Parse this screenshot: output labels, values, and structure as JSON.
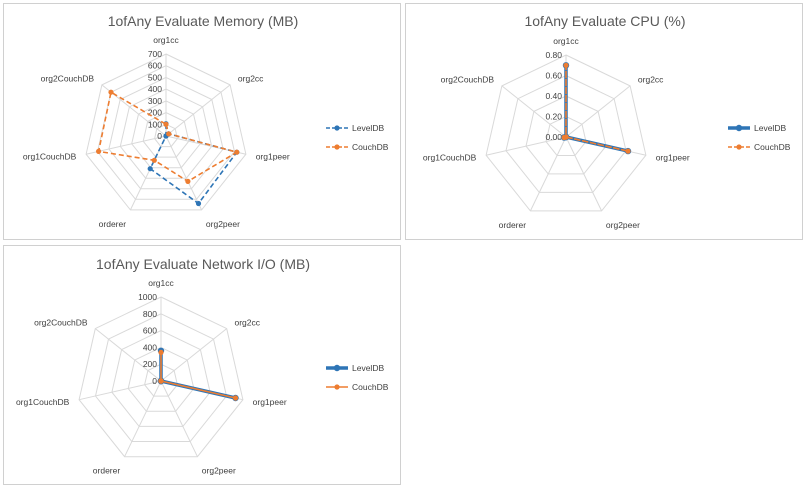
{
  "colors": {
    "leveldb": "#2e75b6",
    "couchdb": "#ed7d31",
    "grid": "#d9d9d9"
  },
  "chart_data": [
    {
      "type": "radar",
      "title": "1ofAny Evaluate Memory (MB)",
      "categories": [
        "org1cc",
        "org2cc",
        "org1peer",
        "org2peer",
        "orderer",
        "org1CouchDB",
        "org2CouchDB"
      ],
      "ylim": [
        0,
        700
      ],
      "ticks": [
        "0",
        "100",
        "200",
        "300",
        "400",
        "500",
        "600",
        "700"
      ],
      "grid": true,
      "legend_position": "right",
      "series": [
        {
          "name": "LevelDB",
          "values": [
            105,
            30,
            620,
            640,
            310,
            0,
            0
          ],
          "style": "dashed"
        },
        {
          "name": "CouchDB",
          "values": [
            100,
            30,
            620,
            430,
            230,
            590,
            600
          ],
          "style": "dashed"
        }
      ]
    },
    {
      "type": "radar",
      "title": "1ofAny Evaluate CPU (%)",
      "categories": [
        "org1cc",
        "org2cc",
        "org1peer",
        "org2peer",
        "orderer",
        "org1CouchDB",
        "org2CouchDB"
      ],
      "ylim": [
        0,
        0.8
      ],
      "ticks": [
        "0.00",
        "0.20",
        "0.40",
        "0.60",
        "0.80"
      ],
      "grid": true,
      "legend_position": "right",
      "series": [
        {
          "name": "LevelDB",
          "values": [
            0.7,
            0.0,
            0.62,
            0.0,
            0.0,
            0.02,
            0.0
          ],
          "style": "solid-thick"
        },
        {
          "name": "CouchDB",
          "values": [
            0.7,
            0.0,
            0.62,
            0.0,
            0.0,
            0.02,
            0.0
          ],
          "style": "dashed"
        }
      ]
    },
    {
      "type": "radar",
      "title": "1ofAny Evaluate Network I/O (MB)",
      "categories": [
        "org1cc",
        "org2cc",
        "org1peer",
        "org2peer",
        "orderer",
        "org1CouchDB",
        "org2CouchDB"
      ],
      "ylim": [
        0,
        1000
      ],
      "ticks": [
        "0",
        "200",
        "400",
        "600",
        "800",
        "1000"
      ],
      "grid": true,
      "legend_position": "right",
      "series": [
        {
          "name": "LevelDB",
          "values": [
            360,
            0,
            910,
            0,
            0,
            0,
            0
          ],
          "style": "solid-thick"
        },
        {
          "name": "CouchDB",
          "values": [
            340,
            0,
            910,
            0,
            0,
            0,
            0
          ],
          "style": "solid"
        }
      ]
    }
  ]
}
